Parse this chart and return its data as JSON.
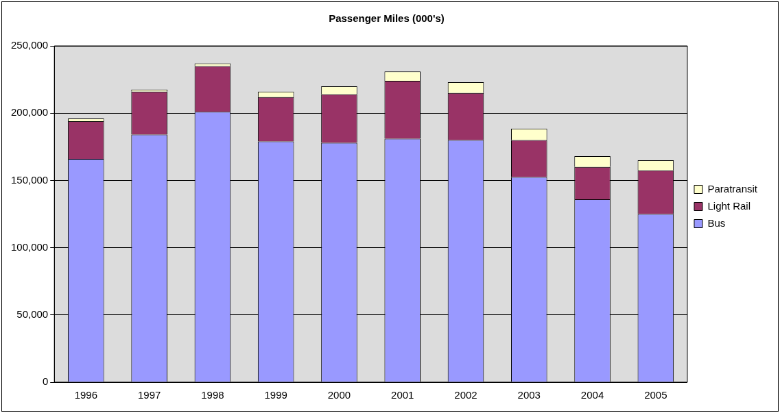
{
  "chart_data": {
    "type": "bar",
    "title": "Passenger Miles (000's)",
    "stacked": true,
    "categories": [
      "1996",
      "1997",
      "1998",
      "1999",
      "2000",
      "2001",
      "2002",
      "2003",
      "2004",
      "2005"
    ],
    "series": [
      {
        "name": "Bus",
        "color": "#9999ff",
        "values": [
          166000,
          184000,
          201000,
          179000,
          178000,
          181000,
          180000,
          152500,
          136000,
          125000
        ]
      },
      {
        "name": "Light Rail",
        "color": "#993366",
        "values": [
          28000,
          32000,
          34000,
          33000,
          36000,
          43000,
          35000,
          27500,
          24000,
          32500
        ]
      },
      {
        "name": "Paratransit",
        "color": "#ffffcc",
        "values": [
          2000,
          1500,
          2000,
          4000,
          6000,
          7000,
          8000,
          8500,
          8000,
          7500
        ]
      }
    ],
    "ylim": [
      0,
      250000
    ],
    "yticks": [
      {
        "value": 0,
        "label": "0"
      },
      {
        "value": 50000,
        "label": "50,000"
      },
      {
        "value": 100000,
        "label": "100,000"
      },
      {
        "value": 150000,
        "label": "150,000"
      },
      {
        "value": 200000,
        "label": "200,000"
      },
      {
        "value": 250000,
        "label": "250,000"
      }
    ],
    "grid": "y",
    "legend": "right"
  }
}
